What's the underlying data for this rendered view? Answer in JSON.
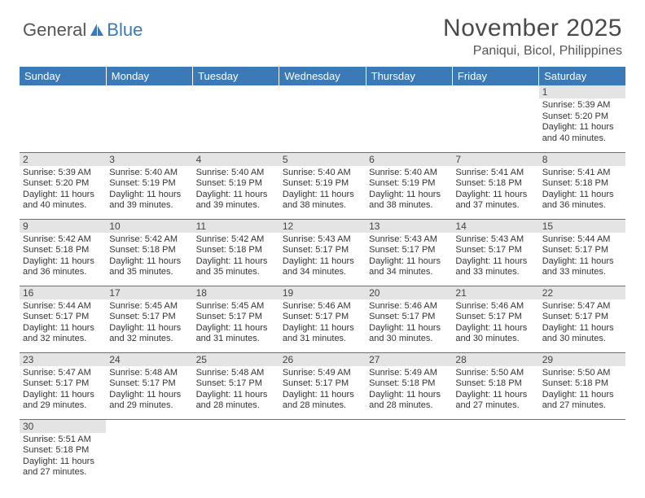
{
  "logo": {
    "text1": "General",
    "text2": "Blue"
  },
  "title": "November 2025",
  "location": "Paniqui, Bicol, Philippines",
  "colors": {
    "header_bg": "#3b79b7",
    "header_text": "#ffffff",
    "daynum_bg": "#e4e4e4",
    "border": "#3b79b7",
    "body_text": "#333333",
    "title_text": "#4a4a4a"
  },
  "day_headers": [
    "Sunday",
    "Monday",
    "Tuesday",
    "Wednesday",
    "Thursday",
    "Friday",
    "Saturday"
  ],
  "weeks": [
    [
      {
        "n": "",
        "lines": []
      },
      {
        "n": "",
        "lines": []
      },
      {
        "n": "",
        "lines": []
      },
      {
        "n": "",
        "lines": []
      },
      {
        "n": "",
        "lines": []
      },
      {
        "n": "",
        "lines": []
      },
      {
        "n": "1",
        "lines": [
          "Sunrise: 5:39 AM",
          "Sunset: 5:20 PM",
          "Daylight: 11 hours and 40 minutes."
        ]
      }
    ],
    [
      {
        "n": "2",
        "lines": [
          "Sunrise: 5:39 AM",
          "Sunset: 5:20 PM",
          "Daylight: 11 hours and 40 minutes."
        ]
      },
      {
        "n": "3",
        "lines": [
          "Sunrise: 5:40 AM",
          "Sunset: 5:19 PM",
          "Daylight: 11 hours and 39 minutes."
        ]
      },
      {
        "n": "4",
        "lines": [
          "Sunrise: 5:40 AM",
          "Sunset: 5:19 PM",
          "Daylight: 11 hours and 39 minutes."
        ]
      },
      {
        "n": "5",
        "lines": [
          "Sunrise: 5:40 AM",
          "Sunset: 5:19 PM",
          "Daylight: 11 hours and 38 minutes."
        ]
      },
      {
        "n": "6",
        "lines": [
          "Sunrise: 5:40 AM",
          "Sunset: 5:19 PM",
          "Daylight: 11 hours and 38 minutes."
        ]
      },
      {
        "n": "7",
        "lines": [
          "Sunrise: 5:41 AM",
          "Sunset: 5:18 PM",
          "Daylight: 11 hours and 37 minutes."
        ]
      },
      {
        "n": "8",
        "lines": [
          "Sunrise: 5:41 AM",
          "Sunset: 5:18 PM",
          "Daylight: 11 hours and 36 minutes."
        ]
      }
    ],
    [
      {
        "n": "9",
        "lines": [
          "Sunrise: 5:42 AM",
          "Sunset: 5:18 PM",
          "Daylight: 11 hours and 36 minutes."
        ]
      },
      {
        "n": "10",
        "lines": [
          "Sunrise: 5:42 AM",
          "Sunset: 5:18 PM",
          "Daylight: 11 hours and 35 minutes."
        ]
      },
      {
        "n": "11",
        "lines": [
          "Sunrise: 5:42 AM",
          "Sunset: 5:18 PM",
          "Daylight: 11 hours and 35 minutes."
        ]
      },
      {
        "n": "12",
        "lines": [
          "Sunrise: 5:43 AM",
          "Sunset: 5:17 PM",
          "Daylight: 11 hours and 34 minutes."
        ]
      },
      {
        "n": "13",
        "lines": [
          "Sunrise: 5:43 AM",
          "Sunset: 5:17 PM",
          "Daylight: 11 hours and 34 minutes."
        ]
      },
      {
        "n": "14",
        "lines": [
          "Sunrise: 5:43 AM",
          "Sunset: 5:17 PM",
          "Daylight: 11 hours and 33 minutes."
        ]
      },
      {
        "n": "15",
        "lines": [
          "Sunrise: 5:44 AM",
          "Sunset: 5:17 PM",
          "Daylight: 11 hours and 33 minutes."
        ]
      }
    ],
    [
      {
        "n": "16",
        "lines": [
          "Sunrise: 5:44 AM",
          "Sunset: 5:17 PM",
          "Daylight: 11 hours and 32 minutes."
        ]
      },
      {
        "n": "17",
        "lines": [
          "Sunrise: 5:45 AM",
          "Sunset: 5:17 PM",
          "Daylight: 11 hours and 32 minutes."
        ]
      },
      {
        "n": "18",
        "lines": [
          "Sunrise: 5:45 AM",
          "Sunset: 5:17 PM",
          "Daylight: 11 hours and 31 minutes."
        ]
      },
      {
        "n": "19",
        "lines": [
          "Sunrise: 5:46 AM",
          "Sunset: 5:17 PM",
          "Daylight: 11 hours and 31 minutes."
        ]
      },
      {
        "n": "20",
        "lines": [
          "Sunrise: 5:46 AM",
          "Sunset: 5:17 PM",
          "Daylight: 11 hours and 30 minutes."
        ]
      },
      {
        "n": "21",
        "lines": [
          "Sunrise: 5:46 AM",
          "Sunset: 5:17 PM",
          "Daylight: 11 hours and 30 minutes."
        ]
      },
      {
        "n": "22",
        "lines": [
          "Sunrise: 5:47 AM",
          "Sunset: 5:17 PM",
          "Daylight: 11 hours and 30 minutes."
        ]
      }
    ],
    [
      {
        "n": "23",
        "lines": [
          "Sunrise: 5:47 AM",
          "Sunset: 5:17 PM",
          "Daylight: 11 hours and 29 minutes."
        ]
      },
      {
        "n": "24",
        "lines": [
          "Sunrise: 5:48 AM",
          "Sunset: 5:17 PM",
          "Daylight: 11 hours and 29 minutes."
        ]
      },
      {
        "n": "25",
        "lines": [
          "Sunrise: 5:48 AM",
          "Sunset: 5:17 PM",
          "Daylight: 11 hours and 28 minutes."
        ]
      },
      {
        "n": "26",
        "lines": [
          "Sunrise: 5:49 AM",
          "Sunset: 5:17 PM",
          "Daylight: 11 hours and 28 minutes."
        ]
      },
      {
        "n": "27",
        "lines": [
          "Sunrise: 5:49 AM",
          "Sunset: 5:18 PM",
          "Daylight: 11 hours and 28 minutes."
        ]
      },
      {
        "n": "28",
        "lines": [
          "Sunrise: 5:50 AM",
          "Sunset: 5:18 PM",
          "Daylight: 11 hours and 27 minutes."
        ]
      },
      {
        "n": "29",
        "lines": [
          "Sunrise: 5:50 AM",
          "Sunset: 5:18 PM",
          "Daylight: 11 hours and 27 minutes."
        ]
      }
    ],
    [
      {
        "n": "30",
        "lines": [
          "Sunrise: 5:51 AM",
          "Sunset: 5:18 PM",
          "Daylight: 11 hours and 27 minutes."
        ]
      },
      {
        "n": "",
        "lines": []
      },
      {
        "n": "",
        "lines": []
      },
      {
        "n": "",
        "lines": []
      },
      {
        "n": "",
        "lines": []
      },
      {
        "n": "",
        "lines": []
      },
      {
        "n": "",
        "lines": []
      }
    ]
  ]
}
